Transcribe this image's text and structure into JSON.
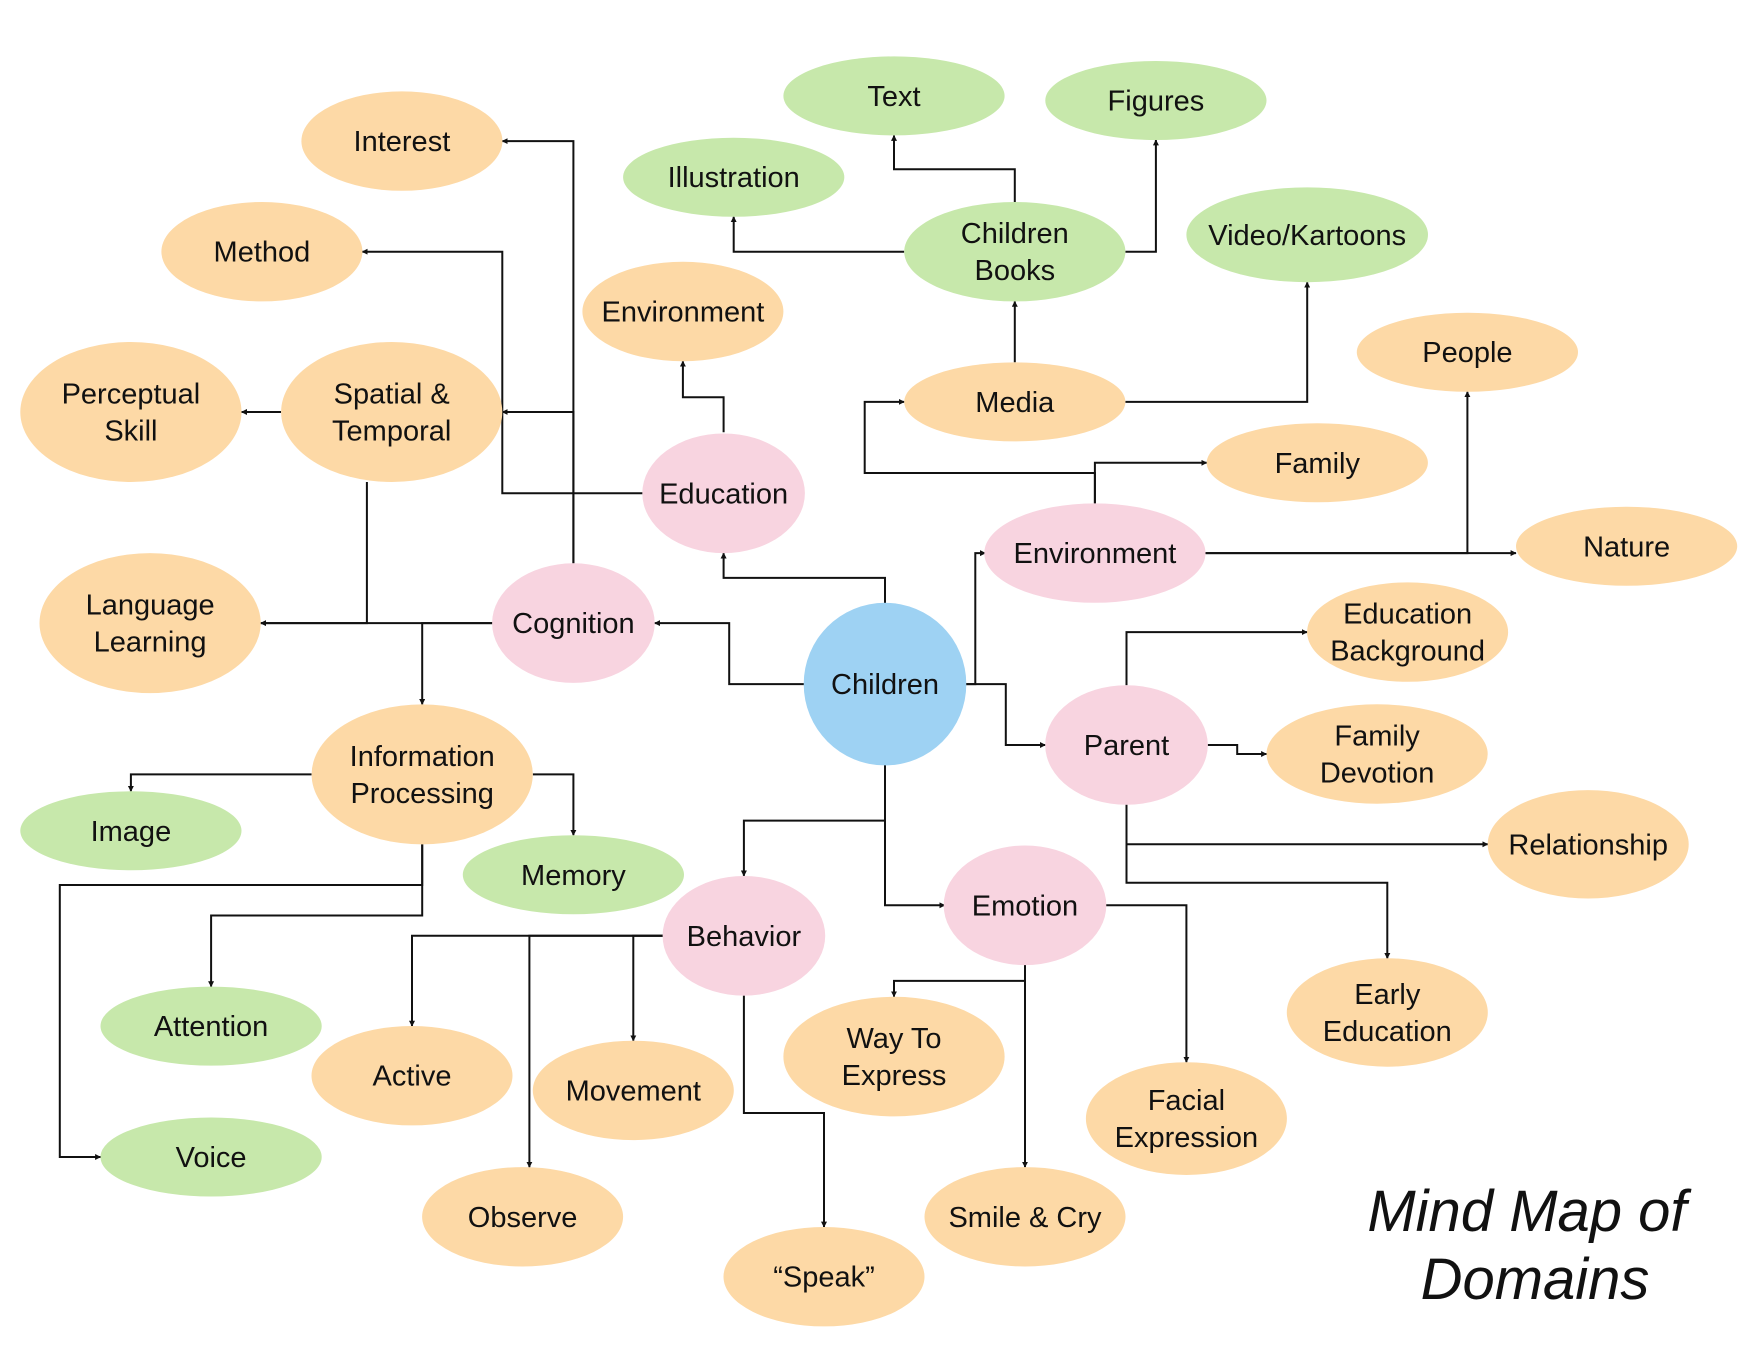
{
  "title_lines": [
    "Mind Map of",
    "Domains"
  ],
  "colors": {
    "center": "#9ed2f3",
    "domain": "#f8d4e0",
    "orange": "#fdd9a6",
    "green": "#c7e8ab",
    "line": "#111111"
  },
  "nodes": [
    {
      "id": "children",
      "lines": [
        "Children"
      ],
      "kind": "center"
    },
    {
      "id": "cognition",
      "lines": [
        "Cognition"
      ],
      "kind": "domain"
    },
    {
      "id": "education",
      "lines": [
        "Education"
      ],
      "kind": "domain"
    },
    {
      "id": "environment",
      "lines": [
        "Environment"
      ],
      "kind": "domain"
    },
    {
      "id": "parent",
      "lines": [
        "Parent"
      ],
      "kind": "domain"
    },
    {
      "id": "behavior",
      "lines": [
        "Behavior"
      ],
      "kind": "domain"
    },
    {
      "id": "emotion",
      "lines": [
        "Emotion"
      ],
      "kind": "domain"
    },
    {
      "id": "interest",
      "lines": [
        "Interest"
      ],
      "kind": "orange"
    },
    {
      "id": "method",
      "lines": [
        "Method"
      ],
      "kind": "orange"
    },
    {
      "id": "edu-environment",
      "lines": [
        "Environment"
      ],
      "kind": "orange"
    },
    {
      "id": "spatial-temporal",
      "lines": [
        "Spatial &",
        "Temporal"
      ],
      "kind": "orange"
    },
    {
      "id": "perceptual-skill",
      "lines": [
        "Perceptual",
        "Skill"
      ],
      "kind": "orange"
    },
    {
      "id": "language-learning",
      "lines": [
        "Language",
        "Learning"
      ],
      "kind": "orange"
    },
    {
      "id": "information-processing",
      "lines": [
        "Information",
        "Processing"
      ],
      "kind": "orange"
    },
    {
      "id": "image",
      "lines": [
        "Image"
      ],
      "kind": "green"
    },
    {
      "id": "memory",
      "lines": [
        "Memory"
      ],
      "kind": "green"
    },
    {
      "id": "attention",
      "lines": [
        "Attention"
      ],
      "kind": "green"
    },
    {
      "id": "voice",
      "lines": [
        "Voice"
      ],
      "kind": "green"
    },
    {
      "id": "text",
      "lines": [
        "Text"
      ],
      "kind": "green"
    },
    {
      "id": "figures",
      "lines": [
        "Figures"
      ],
      "kind": "green"
    },
    {
      "id": "illustration",
      "lines": [
        "Illustration"
      ],
      "kind": "green"
    },
    {
      "id": "children-books",
      "lines": [
        "Children",
        "Books"
      ],
      "kind": "green"
    },
    {
      "id": "video-kartoons",
      "lines": [
        "Video/Kartoons"
      ],
      "kind": "green"
    },
    {
      "id": "media",
      "lines": [
        "Media"
      ],
      "kind": "orange"
    },
    {
      "id": "people",
      "lines": [
        "People"
      ],
      "kind": "orange"
    },
    {
      "id": "family",
      "lines": [
        "Family"
      ],
      "kind": "orange"
    },
    {
      "id": "nature",
      "lines": [
        "Nature"
      ],
      "kind": "orange"
    },
    {
      "id": "education-background",
      "lines": [
        "Education",
        "Background"
      ],
      "kind": "orange"
    },
    {
      "id": "family-devotion",
      "lines": [
        "Family",
        "Devotion"
      ],
      "kind": "orange"
    },
    {
      "id": "relationship",
      "lines": [
        "Relationship"
      ],
      "kind": "orange"
    },
    {
      "id": "early-education",
      "lines": [
        "Early",
        "Education"
      ],
      "kind": "orange"
    },
    {
      "id": "active",
      "lines": [
        "Active"
      ],
      "kind": "orange"
    },
    {
      "id": "movement",
      "lines": [
        "Movement"
      ],
      "kind": "orange"
    },
    {
      "id": "observe",
      "lines": [
        "Observe"
      ],
      "kind": "orange"
    },
    {
      "id": "speak",
      "lines": [
        "“Speak”"
      ],
      "kind": "orange"
    },
    {
      "id": "way-to-express",
      "lines": [
        "Way To",
        "Express"
      ],
      "kind": "orange"
    },
    {
      "id": "smile-cry",
      "lines": [
        "Smile & Cry"
      ],
      "kind": "orange"
    },
    {
      "id": "facial-expression",
      "lines": [
        "Facial",
        "Expression"
      ],
      "kind": "orange"
    }
  ],
  "edges": [
    {
      "from": "children",
      "to": "cognition"
    },
    {
      "from": "children",
      "to": "education"
    },
    {
      "from": "children",
      "to": "environment"
    },
    {
      "from": "children",
      "to": "parent"
    },
    {
      "from": "children",
      "to": "behavior"
    },
    {
      "from": "children",
      "to": "emotion"
    },
    {
      "from": "cognition",
      "to": "interest"
    },
    {
      "from": "cognition",
      "to": "spatial-temporal"
    },
    {
      "from": "cognition",
      "to": "language-learning"
    },
    {
      "from": "cognition",
      "to": "information-processing"
    },
    {
      "from": "spatial-temporal",
      "to": "perceptual-skill"
    },
    {
      "from": "spatial-temporal",
      "to": "language-learning"
    },
    {
      "from": "education",
      "to": "method"
    },
    {
      "from": "education",
      "to": "edu-environment"
    },
    {
      "from": "information-processing",
      "to": "image"
    },
    {
      "from": "information-processing",
      "to": "memory"
    },
    {
      "from": "information-processing",
      "to": "attention"
    },
    {
      "from": "information-processing",
      "to": "voice"
    },
    {
      "from": "environment",
      "to": "family"
    },
    {
      "from": "environment",
      "to": "media"
    },
    {
      "from": "environment",
      "to": "nature"
    },
    {
      "from": "environment",
      "to": "people"
    },
    {
      "from": "media",
      "to": "children-books"
    },
    {
      "from": "media",
      "to": "video-kartoons"
    },
    {
      "from": "children-books",
      "to": "text"
    },
    {
      "from": "children-books",
      "to": "figures"
    },
    {
      "from": "children-books",
      "to": "illustration"
    },
    {
      "from": "parent",
      "to": "education-background"
    },
    {
      "from": "parent",
      "to": "family-devotion"
    },
    {
      "from": "parent",
      "to": "relationship"
    },
    {
      "from": "parent",
      "to": "early-education"
    },
    {
      "from": "behavior",
      "to": "active"
    },
    {
      "from": "behavior",
      "to": "observe"
    },
    {
      "from": "behavior",
      "to": "movement"
    },
    {
      "from": "behavior",
      "to": "speak"
    },
    {
      "from": "emotion",
      "to": "way-to-express"
    },
    {
      "from": "emotion",
      "to": "smile-cry"
    },
    {
      "from": "emotion",
      "to": "facial-expression"
    }
  ]
}
